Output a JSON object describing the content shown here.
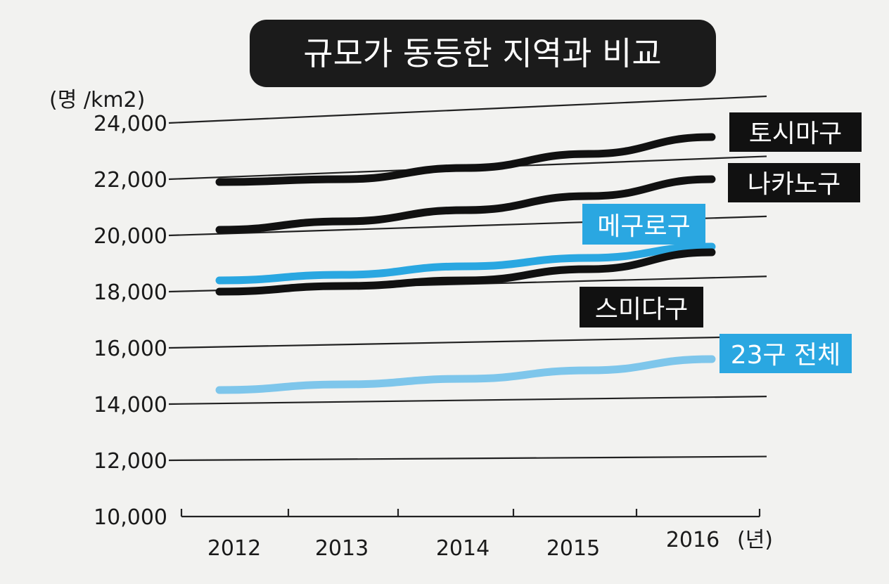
{
  "chart_data": {
    "type": "line",
    "title": "규모가 동등한 지역과 비교",
    "ylabel": "(명 /km2)",
    "xlabel": "(년)",
    "categories": [
      "2012",
      "2013",
      "2014",
      "2015",
      "2016"
    ],
    "ylim": [
      10000,
      24000
    ],
    "yticks": [
      "10,000",
      "12,000",
      "14,000",
      "16,000",
      "18,000",
      "20,000",
      "22,000",
      "24,000"
    ],
    "grid": true,
    "series": [
      {
        "name": "토시마구",
        "values": [
          21900,
          22000,
          22400,
          22900,
          23500
        ],
        "color": "#111111",
        "label_bg": "#111111"
      },
      {
        "name": "나카노구",
        "values": [
          20200,
          20500,
          20900,
          21400,
          22000
        ],
        "color": "#111111",
        "label_bg": "#111111"
      },
      {
        "name": "메구로구",
        "values": [
          18400,
          18600,
          18900,
          19200,
          19600
        ],
        "color": "#2aa7e1",
        "label_bg": "#2aa7e1"
      },
      {
        "name": "스미다구",
        "values": [
          18000,
          18200,
          18400,
          18800,
          19400
        ],
        "color": "#111111",
        "label_bg": "#111111"
      },
      {
        "name": "23구 전체",
        "values": [
          14500,
          14700,
          14900,
          15200,
          15600
        ],
        "color": "#7ec6eb",
        "label_bg": "#2aa7e1"
      }
    ]
  }
}
